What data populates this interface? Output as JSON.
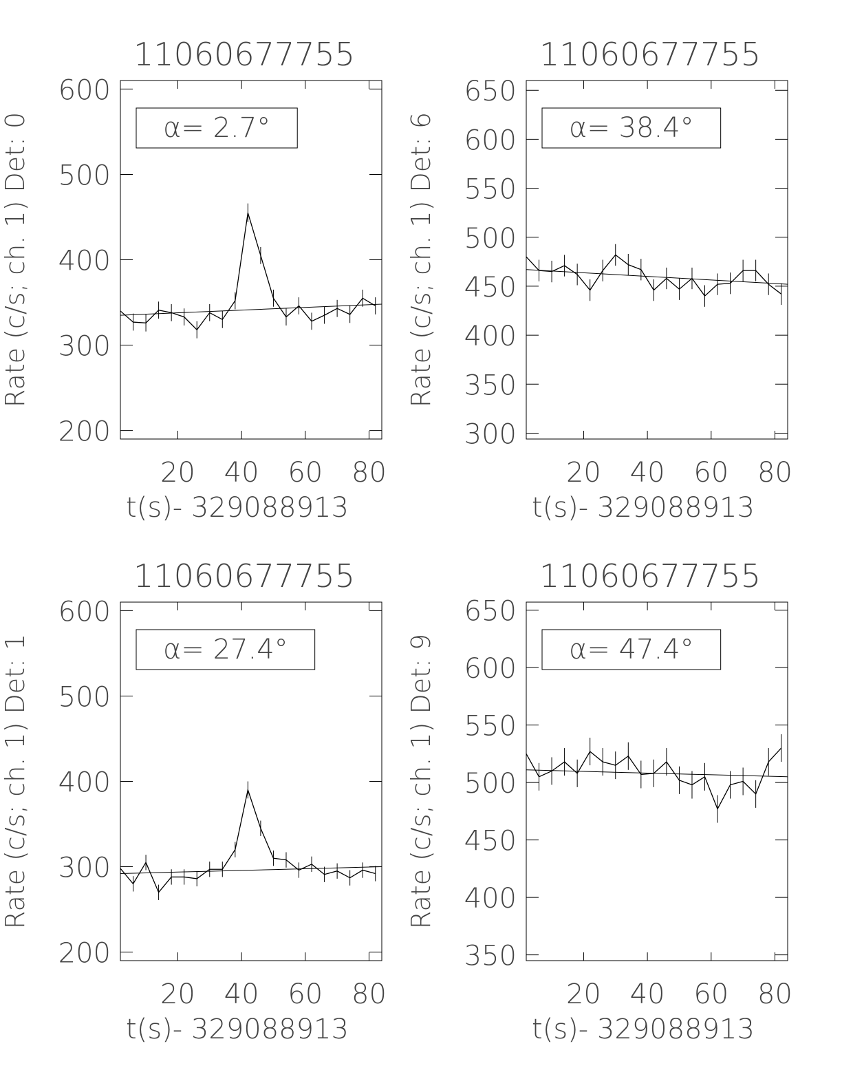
{
  "chart_data": [
    {
      "type": "line",
      "title": "11060677755",
      "xlabel": "t(s)- 329088913",
      "ylabel": "Rate (c/s; ch. 1) Det: 0",
      "annotation": "α= 2.7°",
      "xlim": [
        2,
        84
      ],
      "xticks": [
        20,
        40,
        60,
        80
      ],
      "ylim": [
        190,
        610
      ],
      "yticks": [
        200,
        300,
        400,
        500,
        600
      ],
      "x": [
        2,
        6,
        10,
        14,
        18,
        22,
        26,
        30,
        34,
        38,
        42,
        46,
        50,
        54,
        58,
        62,
        66,
        70,
        74,
        78,
        82
      ],
      "series": [
        {
          "color": "#000000",
          "values": [
            340,
            327,
            326,
            341,
            338,
            333,
            318,
            338,
            330,
            352,
            455,
            405,
            355,
            333,
            346,
            328,
            335,
            343,
            336,
            355,
            346
          ],
          "errors": [
            10,
            10,
            10,
            10,
            10,
            10,
            10,
            10,
            10,
            10,
            11,
            10,
            10,
            10,
            10,
            10,
            10,
            10,
            10,
            10,
            10
          ]
        }
      ],
      "fit": {
        "x": [
          2,
          84
        ],
        "values": [
          335,
          348
        ]
      }
    },
    {
      "type": "line",
      "title": "11060677755",
      "xlabel": "t(s)- 329088913",
      "ylabel": "Rate (c/s; ch. 1) Det: 6",
      "annotation": "α= 38.4°",
      "xlim": [
        2,
        84
      ],
      "xticks": [
        20,
        40,
        60,
        80
      ],
      "ylim": [
        294,
        660
      ],
      "yticks": [
        300,
        350,
        400,
        450,
        500,
        550,
        600,
        650
      ],
      "x": [
        2,
        6,
        10,
        14,
        18,
        22,
        26,
        30,
        34,
        38,
        42,
        46,
        50,
        54,
        58,
        62,
        66,
        70,
        74,
        78,
        82
      ],
      "series": [
        {
          "color": "#000000",
          "values": [
            480,
            466,
            465,
            471,
            462,
            446,
            466,
            482,
            472,
            467,
            446,
            458,
            447,
            458,
            440,
            452,
            453,
            466,
            466,
            452,
            442
          ],
          "errors": [
            11,
            11,
            11,
            11,
            11,
            11,
            11,
            11,
            11,
            11,
            11,
            11,
            11,
            11,
            11,
            11,
            11,
            11,
            11,
            11,
            11
          ]
        }
      ],
      "fit": {
        "x": [
          2,
          84
        ],
        "values": [
          467,
          452
        ]
      }
    },
    {
      "type": "line",
      "title": "11060677755",
      "xlabel": "t(s)- 329088913",
      "ylabel": "Rate (c/s; ch. 1) Det: 1",
      "annotation": "α= 27.4°",
      "xlim": [
        2,
        84
      ],
      "xticks": [
        20,
        40,
        60,
        80
      ],
      "ylim": [
        190,
        610
      ],
      "yticks": [
        200,
        300,
        400,
        500,
        600
      ],
      "x": [
        2,
        6,
        10,
        14,
        18,
        22,
        26,
        30,
        34,
        38,
        42,
        46,
        50,
        54,
        58,
        62,
        66,
        70,
        74,
        78,
        82
      ],
      "series": [
        {
          "color": "#000000",
          "values": [
            298,
            280,
            305,
            270,
            288,
            288,
            286,
            297,
            297,
            320,
            390,
            345,
            310,
            308,
            296,
            303,
            291,
            295,
            287,
            296,
            292
          ],
          "errors": [
            9,
            9,
            9,
            9,
            9,
            9,
            9,
            9,
            9,
            9,
            10,
            9,
            9,
            9,
            9,
            9,
            9,
            9,
            9,
            9,
            9
          ]
        }
      ],
      "fit": {
        "x": [
          2,
          84
        ],
        "values": [
          292,
          300
        ]
      }
    },
    {
      "type": "line",
      "title": "11060677755",
      "xlabel": "t(s)- 329088913",
      "ylabel": "Rate (c/s; ch. 1) Det: 9",
      "annotation": "α= 47.4°",
      "xlim": [
        2,
        84
      ],
      "xticks": [
        20,
        40,
        60,
        80
      ],
      "ylim": [
        345,
        657
      ],
      "yticks": [
        350,
        400,
        450,
        500,
        550,
        600,
        650
      ],
      "x": [
        2,
        6,
        10,
        14,
        18,
        22,
        26,
        30,
        34,
        38,
        42,
        46,
        50,
        54,
        58,
        62,
        66,
        70,
        74,
        78,
        82
      ],
      "series": [
        {
          "color": "#000000",
          "values": [
            525,
            505,
            510,
            518,
            508,
            527,
            518,
            515,
            523,
            507,
            508,
            518,
            502,
            498,
            505,
            477,
            498,
            501,
            490,
            518,
            530
          ],
          "errors": [
            12,
            12,
            12,
            12,
            12,
            12,
            12,
            12,
            12,
            12,
            12,
            12,
            12,
            12,
            12,
            12,
            12,
            12,
            12,
            12,
            12
          ]
        }
      ],
      "fit": {
        "x": [
          2,
          84
        ],
        "values": [
          511,
          505
        ]
      }
    }
  ]
}
